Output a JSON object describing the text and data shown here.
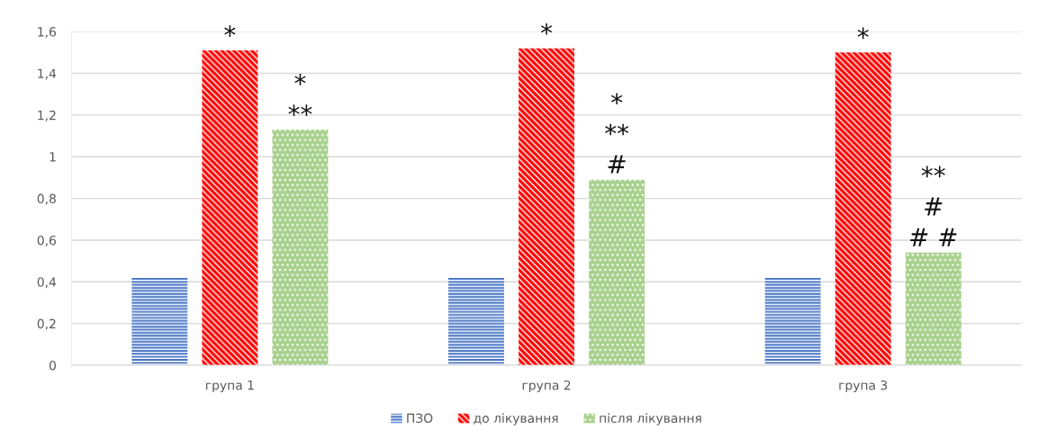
{
  "chart_data": {
    "type": "bar",
    "categories": [
      "група 1",
      "група 2",
      "група 3"
    ],
    "series": [
      {
        "name": "ПЗО",
        "color": "#4472c4",
        "values": [
          0.42,
          0.42,
          0.42
        ]
      },
      {
        "name": "до лікування",
        "color": "#ff0000",
        "values": [
          1.51,
          1.52,
          1.5
        ]
      },
      {
        "name": "після лікування",
        "color": "#a9d18e",
        "values": [
          1.13,
          0.89,
          0.54
        ]
      }
    ],
    "ylim": [
      0,
      1.6
    ],
    "yticks": [
      {
        "value": 0,
        "label": "0"
      },
      {
        "value": 0.2,
        "label": "0,2"
      },
      {
        "value": 0.4,
        "label": "0,4"
      },
      {
        "value": 0.6,
        "label": "0,6"
      },
      {
        "value": 0.8,
        "label": "0,8"
      },
      {
        "value": 1,
        "label": "1"
      },
      {
        "value": 1.2,
        "label": "1,2"
      },
      {
        "value": 1.4,
        "label": "1,4"
      },
      {
        "value": 1.6,
        "label": "1,6"
      }
    ],
    "grid": "y",
    "legend": "bottom",
    "annotations": [
      {
        "text": "*",
        "x": "група 1",
        "y": 1.51
      },
      "*\n**",
      {
        "text": "*",
        "x": "група 2",
        "y": 1.52
      },
      "*\n**\n#",
      {
        "text": "*",
        "x": "група 3",
        "y": 1.5
      },
      "**\n#\n# #"
    ]
  }
}
